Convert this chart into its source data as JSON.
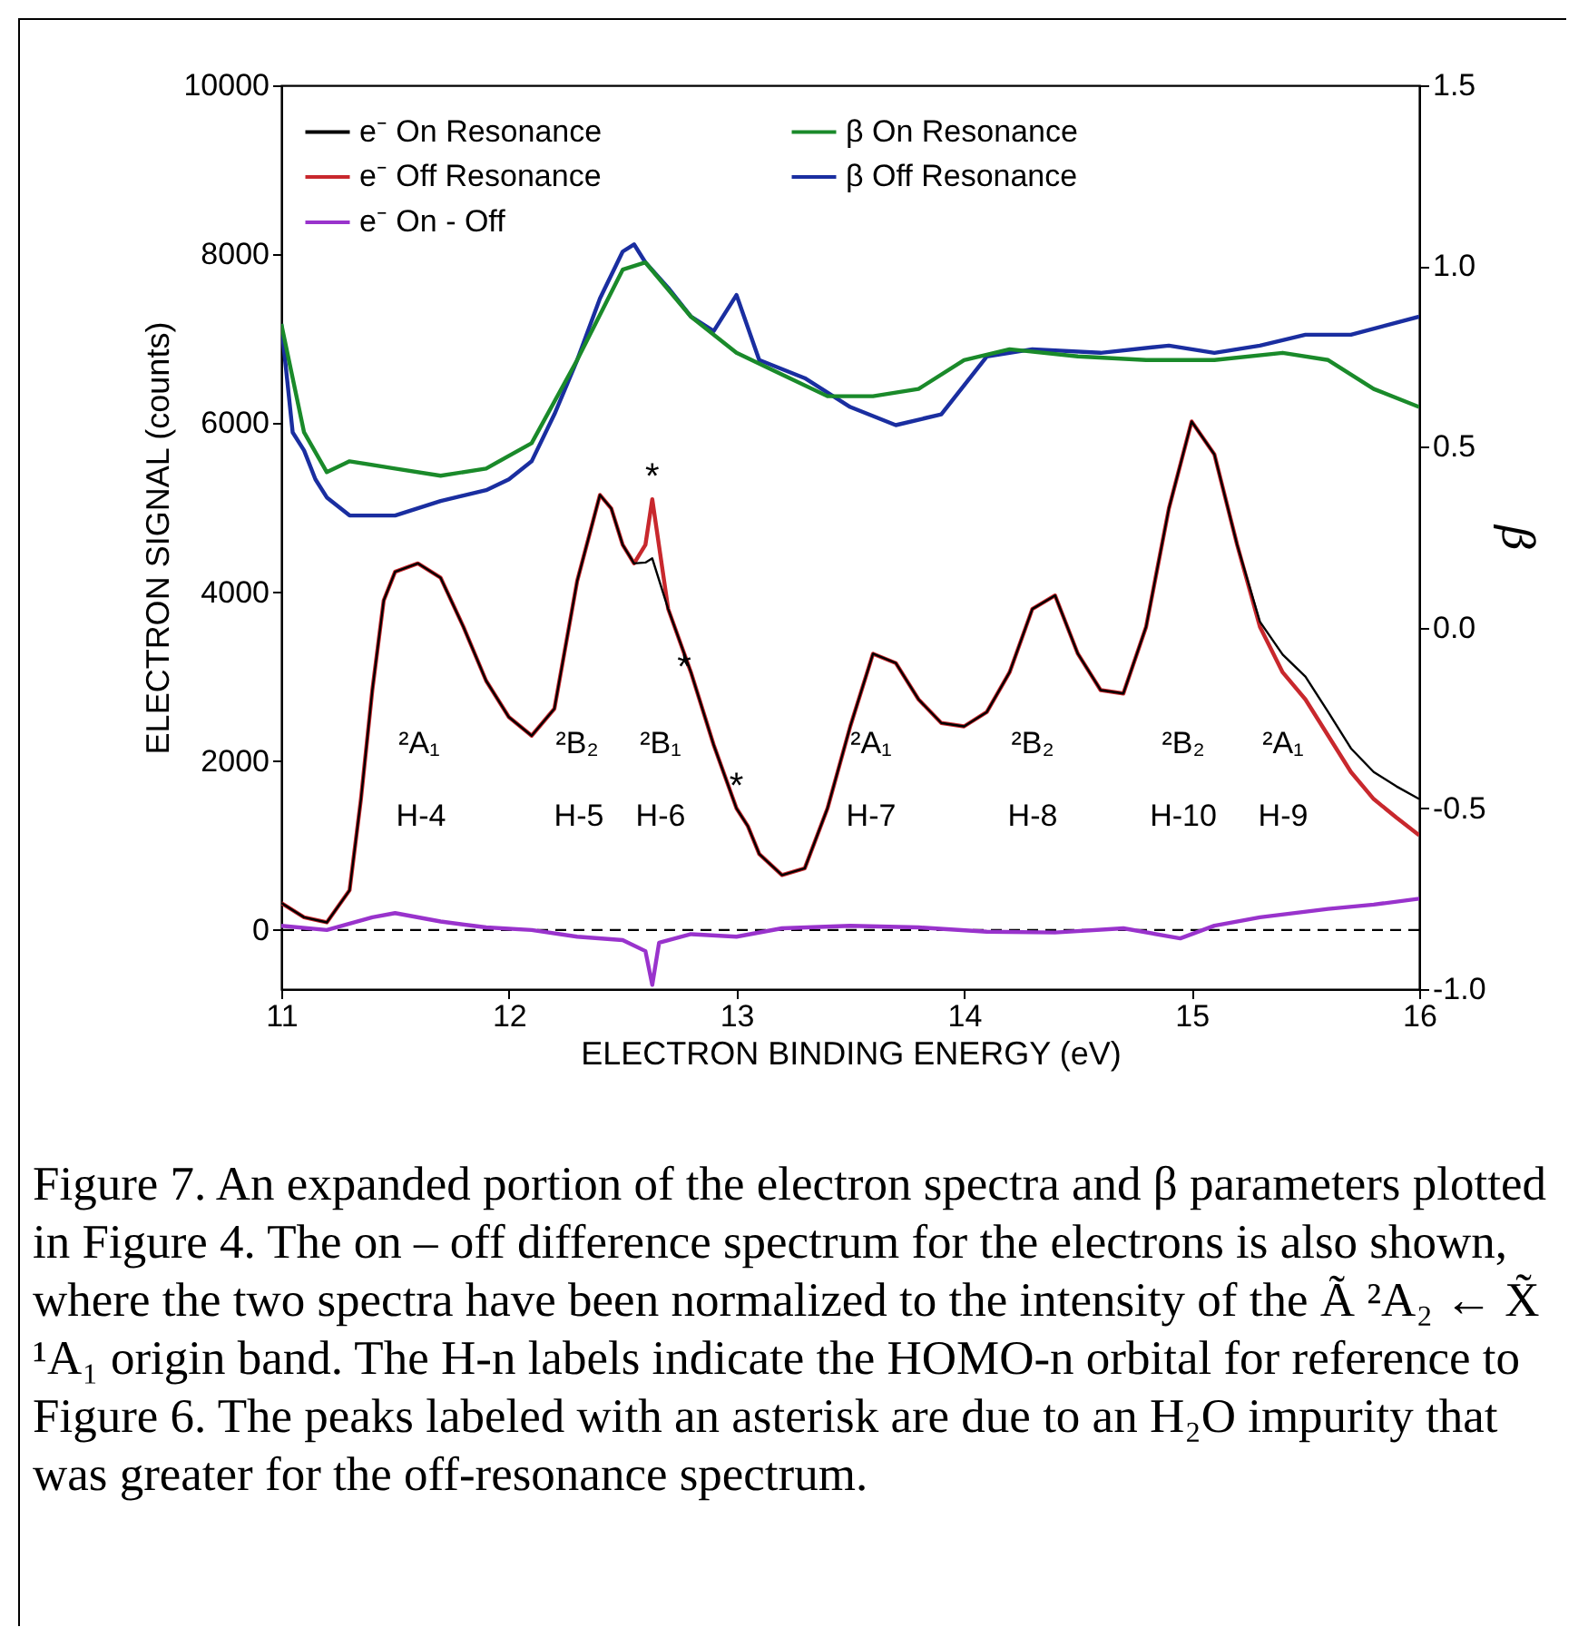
{
  "chart_data": {
    "type": "line",
    "xlabel": "ELECTRON BINDING ENERGY  (eV)",
    "ylabel": "ELECTRON SIGNAL  (counts)",
    "y2label": "β",
    "xlim": [
      11,
      16
    ],
    "xticks": [
      11,
      12,
      13,
      14,
      15,
      16
    ],
    "ylim": [
      -700,
      10000
    ],
    "yticks": [
      0,
      2000,
      4000,
      6000,
      8000,
      10000
    ],
    "y2lim": [
      -1.0,
      1.5
    ],
    "y2ticks": [
      {
        "value": -1,
        "label": "-1.0"
      },
      -0.5,
      {
        "value": 0,
        "label": "0.0"
      },
      0.5,
      {
        "value": 1,
        "label": "1.0"
      },
      1.5
    ],
    "grid": false,
    "legend": "top left",
    "line_style": "solid",
    "marker": "none",
    "ref_lines": [
      {
        "axis": "y",
        "value": 0,
        "line_style": "dashed",
        "color": "#000000"
      }
    ],
    "series": [
      {
        "name": "e⁻ On Resonance",
        "color": "#000000",
        "x": [
          11.0,
          11.1,
          11.2,
          11.3,
          11.35,
          11.4,
          11.45,
          11.5,
          11.6,
          11.7,
          11.8,
          11.9,
          12.0,
          12.1,
          12.2,
          12.3,
          12.4,
          12.45,
          12.5,
          12.55,
          12.6,
          12.63,
          12.7,
          12.8,
          12.9,
          13.0,
          13.05,
          13.1,
          13.2,
          13.3,
          13.4,
          13.5,
          13.6,
          13.7,
          13.8,
          13.9,
          14.0,
          14.1,
          14.2,
          14.3,
          14.4,
          14.5,
          14.6,
          14.7,
          14.8,
          14.9,
          15.0,
          15.1,
          15.2,
          15.3,
          15.4,
          15.5,
          15.6,
          15.7,
          15.8,
          15.9,
          16.0
        ],
        "values": [
          320,
          150,
          90,
          470,
          1550,
          2840,
          3900,
          4240,
          4340,
          4170,
          3590,
          2950,
          2520,
          2300,
          2620,
          4130,
          5150,
          4990,
          4560,
          4340,
          4350,
          4400,
          3800,
          3050,
          2190,
          1440,
          1230,
          900,
          650,
          730,
          1440,
          2410,
          3270,
          3160,
          2730,
          2450,
          2410,
          2580,
          3050,
          3800,
          3960,
          3270,
          2840,
          2800,
          3590,
          4990,
          6020,
          5630,
          4560,
          3650,
          3260,
          3000,
          2580,
          2150,
          1870,
          1700,
          1550
        ]
      },
      {
        "name": "e⁻ Off Resonance",
        "color": "#c8282d",
        "x": [
          11.0,
          11.1,
          11.2,
          11.3,
          11.35,
          11.4,
          11.45,
          11.5,
          11.6,
          11.7,
          11.8,
          11.9,
          12.0,
          12.1,
          12.2,
          12.3,
          12.4,
          12.45,
          12.5,
          12.55,
          12.6,
          12.63,
          12.7,
          12.8,
          12.9,
          13.0,
          13.05,
          13.1,
          13.2,
          13.3,
          13.4,
          13.5,
          13.6,
          13.7,
          13.8,
          13.9,
          14.0,
          14.1,
          14.2,
          14.3,
          14.4,
          14.5,
          14.6,
          14.7,
          14.8,
          14.9,
          15.0,
          15.1,
          15.2,
          15.3,
          15.4,
          15.5,
          15.6,
          15.7,
          15.8,
          15.9,
          16.0
        ],
        "values": [
          320,
          150,
          90,
          470,
          1550,
          2840,
          3900,
          4240,
          4340,
          4170,
          3590,
          2950,
          2520,
          2300,
          2620,
          4130,
          5150,
          4990,
          4560,
          4340,
          4560,
          5100,
          3800,
          3050,
          2190,
          1440,
          1230,
          900,
          650,
          730,
          1440,
          2410,
          3270,
          3160,
          2730,
          2450,
          2410,
          2580,
          3050,
          3800,
          3960,
          3270,
          2840,
          2800,
          3590,
          4990,
          6020,
          5630,
          4560,
          3590,
          3050,
          2730,
          2300,
          1870,
          1550,
          1330,
          1120
        ]
      },
      {
        "name": "e⁻ On - Off",
        "color": "#9933cc",
        "x": [
          11.0,
          11.2,
          11.4,
          11.5,
          11.7,
          11.9,
          12.1,
          12.3,
          12.5,
          12.6,
          12.63,
          12.66,
          12.8,
          13.0,
          13.2,
          13.5,
          13.8,
          14.1,
          14.4,
          14.7,
          14.95,
          15.1,
          15.3,
          15.6,
          15.8,
          16.0
        ],
        "values": [
          50,
          0,
          150,
          200,
          100,
          30,
          0,
          -80,
          -120,
          -250,
          -650,
          -150,
          -50,
          -80,
          20,
          50,
          30,
          -20,
          -30,
          20,
          -100,
          50,
          150,
          250,
          300,
          370
        ]
      },
      {
        "name": "β On Resonance",
        "color": "#1a8a2a",
        "axis": "y2",
        "x": [
          11.0,
          11.1,
          11.2,
          11.3,
          11.5,
          11.7,
          11.9,
          12.1,
          12.3,
          12.5,
          12.6,
          12.8,
          13.0,
          13.2,
          13.4,
          13.6,
          13.8,
          14.0,
          14.2,
          14.5,
          14.8,
          15.1,
          15.4,
          15.6,
          15.8,
          16.0
        ],
        "values": [
          0.84,
          0.54,
          0.43,
          0.46,
          0.44,
          0.42,
          0.44,
          0.51,
          0.74,
          0.99,
          1.01,
          0.86,
          0.76,
          0.7,
          0.64,
          0.64,
          0.66,
          0.74,
          0.77,
          0.75,
          0.74,
          0.74,
          0.76,
          0.74,
          0.66,
          0.61
        ]
      },
      {
        "name": "β Off Resonance",
        "color": "#1a2ea0",
        "axis": "y2",
        "x": [
          11.0,
          11.05,
          11.1,
          11.15,
          11.2,
          11.3,
          11.5,
          11.7,
          11.9,
          12.0,
          12.1,
          12.2,
          12.3,
          12.4,
          12.5,
          12.55,
          12.6,
          12.7,
          12.8,
          12.9,
          13.0,
          13.1,
          13.3,
          13.5,
          13.7,
          13.9,
          14.1,
          14.3,
          14.6,
          14.9,
          15.1,
          15.3,
          15.5,
          15.7,
          16.0
        ],
        "values": [
          0.84,
          0.54,
          0.49,
          0.41,
          0.36,
          0.31,
          0.31,
          0.35,
          0.38,
          0.41,
          0.46,
          0.59,
          0.74,
          0.91,
          1.04,
          1.06,
          1.01,
          0.94,
          0.86,
          0.82,
          0.92,
          0.74,
          0.69,
          0.61,
          0.56,
          0.59,
          0.75,
          0.77,
          0.76,
          0.78,
          0.76,
          0.78,
          0.81,
          0.81,
          0.86
        ]
      }
    ],
    "annotations": [
      "²A₁",
      "H-4",
      "²B₂",
      "H-5",
      "²B₁",
      "H-6",
      "²A₁",
      "H-7",
      "²B₂",
      "H-8",
      "²B₂",
      "H-10",
      "²A₁",
      "H-9",
      {
        "text": "*",
        "x": 12.63,
        "y": 5100
      },
      {
        "text": "*",
        "x": 12.77,
        "y": 2850
      },
      {
        "text": "*",
        "x": 13.0,
        "y": 1440
      },
      "Figure 7. An expanded portion of the electron spectra and β parameters plotted in Figure 4. The on – off difference spectrum for the electrons is also shown, where the two spectra have been normalized to the intensity of the Ã ²A₂ ← X̃ ¹A₁ origin band. The H-n labels indicate the HOMO-n orbital for reference to Figure 6. The peaks labeled with an asterisk are due to an H₂O impurity that was greater for the off-resonance spectrum."
    ]
  }
}
